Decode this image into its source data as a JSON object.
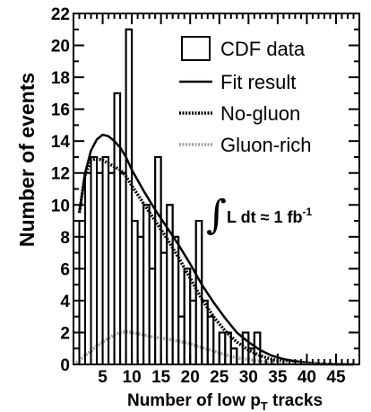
{
  "chart_data": {
    "type": "histogram",
    "xlabel": "Number of low p_T tracks",
    "xlabel_parts": {
      "main": "Number of low p",
      "sub": "T",
      "tail": " tracks"
    },
    "ylabel": "Number of events",
    "xlim": [
      0,
      49
    ],
    "ylim": [
      0,
      22
    ],
    "x_ticks": [
      5,
      10,
      15,
      20,
      25,
      30,
      35,
      40,
      45
    ],
    "y_ticks": [
      0,
      2,
      4,
      6,
      8,
      10,
      12,
      14,
      16,
      18,
      20,
      22
    ],
    "bin_width": 1,
    "data": {
      "name": "CDF data",
      "bin_low_edges": [
        1,
        2,
        3,
        4,
        5,
        6,
        7,
        8,
        9,
        10,
        11,
        12,
        13,
        14,
        15,
        16,
        17,
        18,
        19,
        20,
        21,
        22,
        23,
        24,
        25,
        26,
        27,
        28,
        29,
        30,
        31,
        32,
        33
      ],
      "counts": [
        9,
        12,
        13,
        12,
        13,
        12,
        17,
        12,
        21,
        9,
        8,
        10,
        6,
        13,
        7,
        10,
        8,
        3,
        6,
        4,
        9,
        4,
        3,
        0,
        2,
        2,
        1,
        0,
        2,
        1,
        2,
        0,
        0
      ]
    },
    "series": [
      {
        "name": "Fit result",
        "style": "solid",
        "color": "#000000",
        "x": [
          1,
          2,
          3,
          4,
          5,
          6,
          7,
          8,
          9,
          10,
          12,
          14,
          16,
          18,
          20,
          22,
          24,
          26,
          28,
          30,
          32,
          34,
          36,
          38,
          40,
          42,
          45,
          48
        ],
        "y": [
          9.5,
          12.0,
          13.4,
          14.1,
          14.4,
          14.3,
          14.0,
          13.6,
          13.0,
          12.2,
          10.9,
          9.7,
          8.6,
          7.5,
          6.3,
          5.0,
          3.9,
          2.9,
          2.0,
          1.4,
          0.9,
          0.55,
          0.33,
          0.2,
          0.12,
          0.06,
          0.02,
          0.0
        ]
      },
      {
        "name": "No-gluon",
        "style": "dotted",
        "color": "#000000",
        "x": [
          1,
          2,
          3,
          4,
          5,
          6,
          7,
          8,
          9,
          10,
          12,
          14,
          16,
          18,
          20,
          22,
          24,
          26,
          28,
          30,
          32,
          34,
          36,
          38,
          40,
          42,
          45,
          48
        ],
        "y": [
          9.5,
          11.9,
          12.8,
          12.9,
          12.8,
          12.6,
          12.4,
          12.2,
          11.8,
          11.2,
          10.1,
          9.0,
          7.9,
          6.7,
          5.4,
          4.1,
          3.0,
          2.1,
          1.4,
          0.9,
          0.55,
          0.32,
          0.18,
          0.1,
          0.05,
          0.02,
          0.0,
          0.0
        ]
      },
      {
        "name": "Gluon-rich",
        "style": "dotted",
        "color": "#a0a0a0",
        "x": [
          0,
          1,
          2,
          3,
          4,
          5,
          6,
          7,
          8,
          9,
          10,
          12,
          14,
          16,
          18,
          20,
          22,
          24,
          26,
          28,
          30,
          32,
          34,
          36,
          38,
          40,
          45,
          48
        ],
        "y": [
          0.0,
          0.25,
          0.55,
          0.85,
          1.15,
          1.4,
          1.65,
          1.85,
          2.0,
          2.05,
          2.0,
          1.85,
          1.7,
          1.6,
          1.45,
          1.3,
          1.05,
          0.85,
          0.6,
          0.42,
          0.3,
          0.2,
          0.12,
          0.08,
          0.05,
          0.03,
          0.01,
          0.0
        ]
      }
    ],
    "legend": {
      "placement": "top-right",
      "entries": [
        "CDF data",
        "Fit result",
        "No-gluon",
        "Gluon-rich"
      ]
    },
    "annotation": {
      "integral_sign": "∫",
      "main": "L dt ≈ 1 fb",
      "superscript": "-1"
    },
    "grid": false
  }
}
